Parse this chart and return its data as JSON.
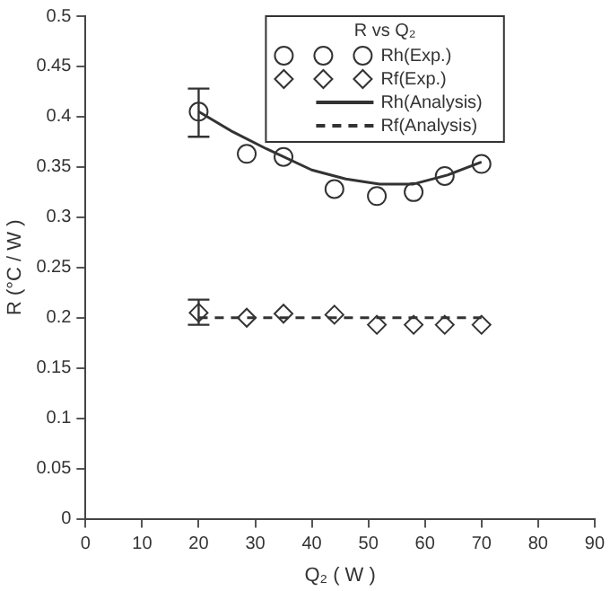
{
  "chart_data": {
    "type": "scatter",
    "xlabel": "Q₂ ( W )",
    "ylabel": "R (°C / W )",
    "legend_title": "R vs Q₂",
    "legend": "top",
    "grid": false,
    "xlim": [
      0,
      90
    ],
    "xticks": [
      0,
      10,
      20,
      30,
      40,
      50,
      60,
      70,
      80,
      90
    ],
    "ylim": [
      0,
      0.5
    ],
    "yticks": [
      0,
      0.05,
      0.1,
      0.15,
      0.2,
      0.25,
      0.3,
      0.35,
      0.4,
      0.45,
      0.5
    ],
    "series": [
      {
        "name": "Rh(Exp.)",
        "marker": "circle",
        "color": "#333333",
        "x": [
          20,
          28.5,
          35,
          44,
          51.5,
          58,
          63.5,
          70
        ],
        "values": [
          0.405,
          0.363,
          0.36,
          0.328,
          0.321,
          0.325,
          0.341,
          0.353
        ],
        "errors": [
          [
            0.38,
            0.428
          ],
          null,
          null,
          null,
          null,
          null,
          null,
          null
        ]
      },
      {
        "name": "Rf(Exp.)",
        "marker": "diamond",
        "color": "#333333",
        "x": [
          20,
          28.5,
          35,
          44,
          51.5,
          58,
          63.5,
          70
        ],
        "values": [
          0.205,
          0.2,
          0.204,
          0.203,
          0.193,
          0.193,
          0.193,
          0.193
        ],
        "errors": [
          [
            0.193,
            0.218
          ],
          null,
          null,
          null,
          null,
          null,
          null,
          null
        ]
      },
      {
        "name": "Rh(Analysis)",
        "type": "line",
        "line_style": "solid",
        "color": "#333333",
        "x": [
          20,
          26,
          32,
          40,
          46,
          52,
          58,
          64,
          70
        ],
        "values": [
          0.405,
          0.385,
          0.368,
          0.347,
          0.338,
          0.333,
          0.333,
          0.342,
          0.355
        ]
      },
      {
        "name": "Rf(Analysis)",
        "type": "line",
        "line_style": "dashed",
        "color": "#333333",
        "x": [
          20,
          70
        ],
        "values": [
          0.2,
          0.2
        ]
      }
    ]
  }
}
